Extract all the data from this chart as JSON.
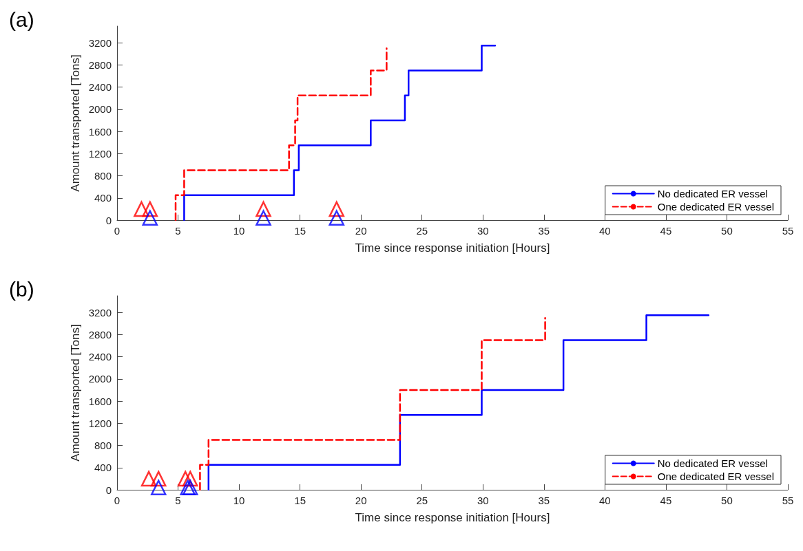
{
  "chart_data": [
    {
      "type": "step",
      "title": "(a)",
      "xlabel": "Time since response initiation [Hours]",
      "ylabel": "Amount transported [Tons]",
      "xlim": [
        0,
        55
      ],
      "xticks": [
        0,
        5,
        10,
        15,
        20,
        25,
        30,
        35,
        40,
        45,
        50,
        55
      ],
      "ylim": [
        0,
        3500
      ],
      "yticks": [
        0,
        400,
        800,
        1200,
        1600,
        2000,
        2400,
        2800,
        3200
      ],
      "grid": false,
      "legend": "bottom right",
      "series": [
        {
          "name": "No dedicated ER vessel",
          "color": "#0000ff",
          "line_style": "solid",
          "x": [
            5.5,
            5.5,
            14.5,
            14.9,
            20.8,
            23.6,
            23.9,
            29.9,
            31.0
          ],
          "values": [
            0,
            450,
            900,
            1350,
            1800,
            2250,
            2700,
            3150,
            3150
          ]
        },
        {
          "name": "One dedicated ER vessel",
          "color": "#ff0000",
          "line_style": "dashed",
          "x": [
            4.8,
            4.8,
            5.5,
            14.1,
            14.6,
            14.8,
            20.8,
            22.1
          ],
          "values": [
            0,
            450,
            900,
            1350,
            1800,
            2250,
            2700,
            3100
          ]
        },
        {
          "type": "scatter",
          "color": "#ff0000",
          "marker": "triangle",
          "x": [
            2.0,
            2.7,
            12.0,
            18.0
          ],
          "values": [
            200,
            200,
            200,
            200
          ]
        },
        {
          "type": "scatter",
          "color": "#0000ff",
          "marker": "triangle",
          "x": [
            2.7,
            12.0,
            18.0
          ],
          "values": [
            40,
            40,
            40
          ]
        }
      ]
    },
    {
      "type": "step",
      "title": "(b)",
      "xlabel": "Time since response initiation [Hours]",
      "ylabel": "Amount transported [Tons]",
      "xlim": [
        0,
        55
      ],
      "xticks": [
        0,
        5,
        10,
        15,
        20,
        25,
        30,
        35,
        40,
        45,
        50,
        55
      ],
      "ylim": [
        0,
        3500
      ],
      "yticks": [
        0,
        400,
        800,
        1200,
        1600,
        2000,
        2400,
        2800,
        3200
      ],
      "grid": false,
      "legend": "bottom right",
      "series": [
        {
          "name": "No dedicated ER vessel",
          "color": "#0000ff",
          "line_style": "solid",
          "x": [
            7.5,
            7.5,
            23.2,
            29.9,
            36.6,
            43.4,
            48.5
          ],
          "values": [
            0,
            450,
            1350,
            1800,
            2700,
            3150,
            3150
          ]
        },
        {
          "name": "One dedicated ER vessel",
          "color": "#ff0000",
          "line_style": "dashed",
          "x": [
            6.8,
            6.8,
            7.5,
            23.2,
            29.9,
            35.1
          ],
          "values": [
            0,
            450,
            900,
            1800,
            2700,
            3100
          ]
        },
        {
          "type": "scatter",
          "color": "#ff0000",
          "marker": "triangle",
          "x": [
            2.6,
            3.4,
            5.6,
            6.0
          ],
          "values": [
            200,
            200,
            200,
            200
          ]
        },
        {
          "type": "scatter",
          "color": "#0000ff",
          "marker": "triangle",
          "x": [
            3.4,
            5.8,
            6.0
          ],
          "values": [
            40,
            40,
            40
          ]
        }
      ]
    }
  ]
}
